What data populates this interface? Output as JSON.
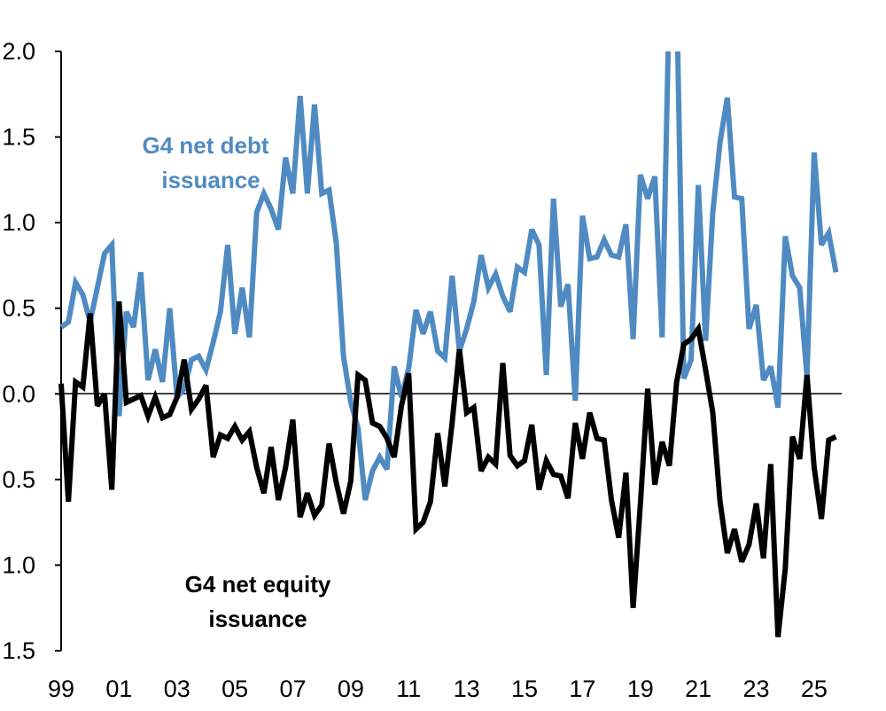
{
  "chart_data": {
    "type": "line",
    "title": "",
    "xlabel": "",
    "ylabel": "",
    "ylim": [
      -1.5,
      2.0
    ],
    "yticks": [
      2.0,
      1.5,
      1.0,
      0.5,
      0.0,
      -0.5,
      -1.0,
      -1.5
    ],
    "ytick_labels": [
      "2.0",
      "1.5",
      "1.0",
      "0.5",
      "0.0",
      "0.5",
      "1.0",
      "1.5"
    ],
    "xlim": [
      1999.0,
      2025.95
    ],
    "xtick_values": [
      1999,
      2001,
      2003,
      2005,
      2007,
      2009,
      2011,
      2013,
      2015,
      2017,
      2019,
      2021,
      2023,
      2025
    ],
    "xtick_labels": [
      "99",
      "01",
      "03",
      "05",
      "07",
      "09",
      "11",
      "13",
      "15",
      "17",
      "19",
      "21",
      "23",
      "25"
    ],
    "grid": false,
    "legend": "inline labels",
    "series": [
      {
        "name": "G4 net debt issuance",
        "label_lines": [
          "G4 net debt",
          "issuance"
        ],
        "color": "#4f8bc2",
        "x": [
          1999.0,
          1999.25,
          1999.5,
          1999.75,
          2000.0,
          2000.25,
          2000.5,
          2000.75,
          2001.0,
          2001.25,
          2001.5,
          2001.75,
          2002.0,
          2002.25,
          2002.5,
          2002.75,
          2003.0,
          2003.25,
          2003.5,
          2003.75,
          2004.0,
          2004.25,
          2004.5,
          2004.75,
          2005.0,
          2005.25,
          2005.5,
          2005.75,
          2006.0,
          2006.25,
          2006.5,
          2006.75,
          2007.0,
          2007.25,
          2007.5,
          2007.75,
          2008.0,
          2008.25,
          2008.5,
          2008.75,
          2009.0,
          2009.25,
          2009.5,
          2009.75,
          2010.0,
          2010.25,
          2010.5,
          2010.75,
          2011.0,
          2011.25,
          2011.5,
          2011.75,
          2012.0,
          2012.25,
          2012.5,
          2012.75,
          2013.0,
          2013.25,
          2013.5,
          2013.75,
          2014.0,
          2014.25,
          2014.5,
          2014.75,
          2015.0,
          2015.25,
          2015.5,
          2015.75,
          2016.0,
          2016.25,
          2016.5,
          2016.75,
          2017.0,
          2017.25,
          2017.5,
          2017.75,
          2018.0,
          2018.25,
          2018.5,
          2018.75,
          2019.0,
          2019.25,
          2019.5,
          2019.75,
          2020.0,
          2020.25,
          2020.5,
          2020.75,
          2021.0,
          2021.25,
          2021.5,
          2021.75,
          2022.0,
          2022.25,
          2022.5,
          2022.75,
          2023.0,
          2023.25,
          2023.5,
          2023.75,
          2024.0,
          2024.25,
          2024.5,
          2024.75,
          2025.0,
          2025.25,
          2025.5,
          2025.75
        ],
        "values": [
          0.39,
          0.42,
          0.65,
          0.58,
          0.42,
          0.62,
          0.82,
          0.87,
          -0.13,
          0.48,
          0.39,
          0.71,
          0.08,
          0.26,
          0.07,
          0.5,
          -0.02,
          0.03,
          0.2,
          0.22,
          0.14,
          0.3,
          0.48,
          0.87,
          0.35,
          0.62,
          0.33,
          1.06,
          1.17,
          1.08,
          0.96,
          1.38,
          1.17,
          1.74,
          1.17,
          1.69,
          1.17,
          1.19,
          0.88,
          0.22,
          -0.05,
          -0.2,
          -0.62,
          -0.45,
          -0.37,
          -0.44,
          0.16,
          -0.02,
          0.15,
          0.49,
          0.35,
          0.48,
          0.25,
          0.21,
          0.69,
          0.25,
          0.38,
          0.54,
          0.81,
          0.62,
          0.7,
          0.57,
          0.48,
          0.74,
          0.71,
          0.96,
          0.87,
          0.11,
          1.14,
          0.51,
          0.64,
          -0.04,
          1.04,
          0.79,
          0.8,
          0.9,
          0.81,
          0.8,
          0.99,
          0.32,
          1.28,
          1.14,
          1.27,
          0.33,
          2.35,
          2.35,
          0.09,
          0.2,
          1.22,
          0.31,
          1.06,
          1.47,
          1.73,
          1.15,
          1.14,
          0.38,
          0.52,
          0.08,
          0.16,
          -0.08,
          0.92,
          0.69,
          0.62,
          0.1,
          1.41,
          0.87,
          0.94,
          0.71
        ]
      },
      {
        "name": "G4 net equity issuance",
        "label_lines": [
          "G4 net equity",
          "issuance"
        ],
        "color": "#000000",
        "x": [
          1999.0,
          1999.25,
          1999.5,
          1999.75,
          2000.0,
          2000.25,
          2000.5,
          2000.75,
          2001.0,
          2001.25,
          2001.5,
          2001.75,
          2002.0,
          2002.25,
          2002.5,
          2002.75,
          2003.0,
          2003.25,
          2003.5,
          2003.75,
          2004.0,
          2004.25,
          2004.5,
          2004.75,
          2005.0,
          2005.25,
          2005.5,
          2005.75,
          2006.0,
          2006.25,
          2006.5,
          2006.75,
          2007.0,
          2007.25,
          2007.5,
          2007.75,
          2008.0,
          2008.25,
          2008.5,
          2008.75,
          2009.0,
          2009.25,
          2009.5,
          2009.75,
          2010.0,
          2010.25,
          2010.5,
          2010.75,
          2011.0,
          2011.25,
          2011.5,
          2011.75,
          2012.0,
          2012.25,
          2012.5,
          2012.75,
          2013.0,
          2013.25,
          2013.5,
          2013.75,
          2014.0,
          2014.25,
          2014.5,
          2014.75,
          2015.0,
          2015.25,
          2015.5,
          2015.75,
          2016.0,
          2016.25,
          2016.5,
          2016.75,
          2017.0,
          2017.25,
          2017.5,
          2017.75,
          2018.0,
          2018.25,
          2018.5,
          2018.75,
          2019.0,
          2019.25,
          2019.5,
          2019.75,
          2020.0,
          2020.25,
          2020.5,
          2020.75,
          2021.0,
          2021.25,
          2021.5,
          2021.75,
          2022.0,
          2022.25,
          2022.5,
          2022.75,
          2023.0,
          2023.25,
          2023.5,
          2023.75,
          2024.0,
          2024.25,
          2024.5,
          2024.75,
          2025.0,
          2025.25,
          2025.5,
          2025.75
        ],
        "values": [
          0.06,
          -0.63,
          0.07,
          0.04,
          0.47,
          -0.07,
          0.0,
          -0.56,
          0.54,
          -0.05,
          -0.03,
          -0.01,
          -0.13,
          -0.02,
          -0.14,
          -0.12,
          -0.02,
          0.2,
          -0.09,
          -0.03,
          0.05,
          -0.37,
          -0.24,
          -0.26,
          -0.19,
          -0.27,
          -0.22,
          -0.43,
          -0.58,
          -0.31,
          -0.62,
          -0.43,
          -0.15,
          -0.72,
          -0.58,
          -0.71,
          -0.65,
          -0.29,
          -0.52,
          -0.7,
          -0.51,
          0.11,
          0.08,
          -0.17,
          -0.19,
          -0.26,
          -0.37,
          -0.07,
          0.12,
          -0.79,
          -0.75,
          -0.63,
          -0.23,
          -0.54,
          -0.17,
          0.26,
          -0.11,
          -0.08,
          -0.45,
          -0.37,
          -0.41,
          0.18,
          -0.36,
          -0.42,
          -0.39,
          -0.18,
          -0.56,
          -0.39,
          -0.47,
          -0.48,
          -0.61,
          -0.17,
          -0.38,
          -0.11,
          -0.26,
          -0.27,
          -0.62,
          -0.84,
          -0.46,
          -1.25,
          -0.64,
          0.03,
          -0.53,
          -0.28,
          -0.42,
          0.07,
          0.29,
          0.32,
          0.38,
          0.14,
          -0.11,
          -0.63,
          -0.93,
          -0.79,
          -0.98,
          -0.88,
          -0.64,
          -0.96,
          -0.41,
          -1.42,
          -1.02,
          -0.25,
          -0.38,
          0.11,
          -0.43,
          -0.73,
          -0.27,
          -0.25
        ]
      }
    ]
  }
}
